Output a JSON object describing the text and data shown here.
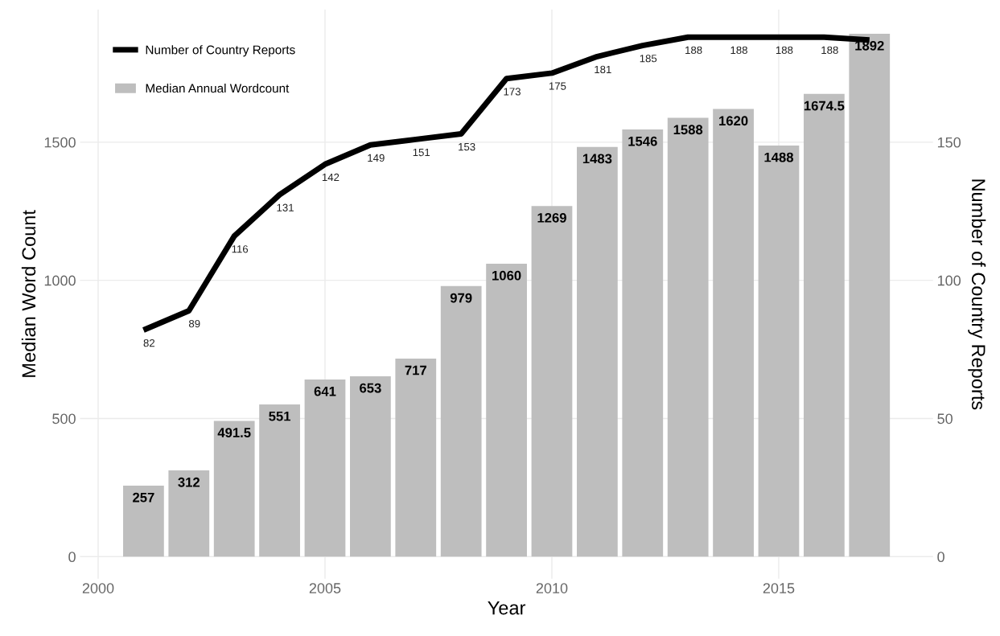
{
  "chart_data": {
    "type": "bar",
    "xlabel": "Year",
    "ylabel": "Median Word Count",
    "y2label": "Number of Country Reports",
    "x": [
      2001,
      2002,
      2003,
      2004,
      2005,
      2006,
      2007,
      2008,
      2009,
      2010,
      2011,
      2012,
      2013,
      2014,
      2015,
      2016,
      2017
    ],
    "series": [
      {
        "name": "Median Annual Wordcount",
        "color": "#bebebe",
        "values": [
          257,
          312,
          491.5,
          551,
          641,
          653,
          717,
          979,
          1060,
          1269,
          1483,
          1546,
          1588,
          1620,
          1488,
          1674.5,
          1892
        ],
        "value_labels": [
          "257",
          "312",
          "491.5",
          "551",
          "641",
          "653",
          "717",
          "979",
          "1060",
          "1269",
          "1483",
          "1546",
          "1588",
          "1620",
          "1488",
          "1674.5",
          "1892"
        ]
      },
      {
        "name": "Number of Country Reports",
        "type": "line",
        "axis": "y2",
        "color": "#000000",
        "values": [
          82,
          89,
          116,
          131,
          142,
          149,
          151,
          153,
          173,
          175,
          181,
          185,
          188,
          188,
          188,
          188,
          187
        ],
        "value_labels": [
          "82",
          "89",
          "116",
          "131",
          "142",
          "149",
          "151",
          "153",
          "173",
          "175",
          "181",
          "185",
          "188",
          "188",
          "188",
          "188",
          null
        ]
      }
    ],
    "xlim": [
      1999.6,
      2018.4
    ],
    "xticks": [
      2000,
      2005,
      2010,
      2015
    ],
    "ylim": [
      -80,
      1980
    ],
    "yticks": [
      0,
      500,
      1000,
      1500
    ],
    "y2lim": [
      -8,
      198
    ],
    "y2ticks": [
      0,
      50,
      100,
      150
    ],
    "grid": true,
    "legend": "top left",
    "line_style": "solid",
    "marker": "none"
  }
}
